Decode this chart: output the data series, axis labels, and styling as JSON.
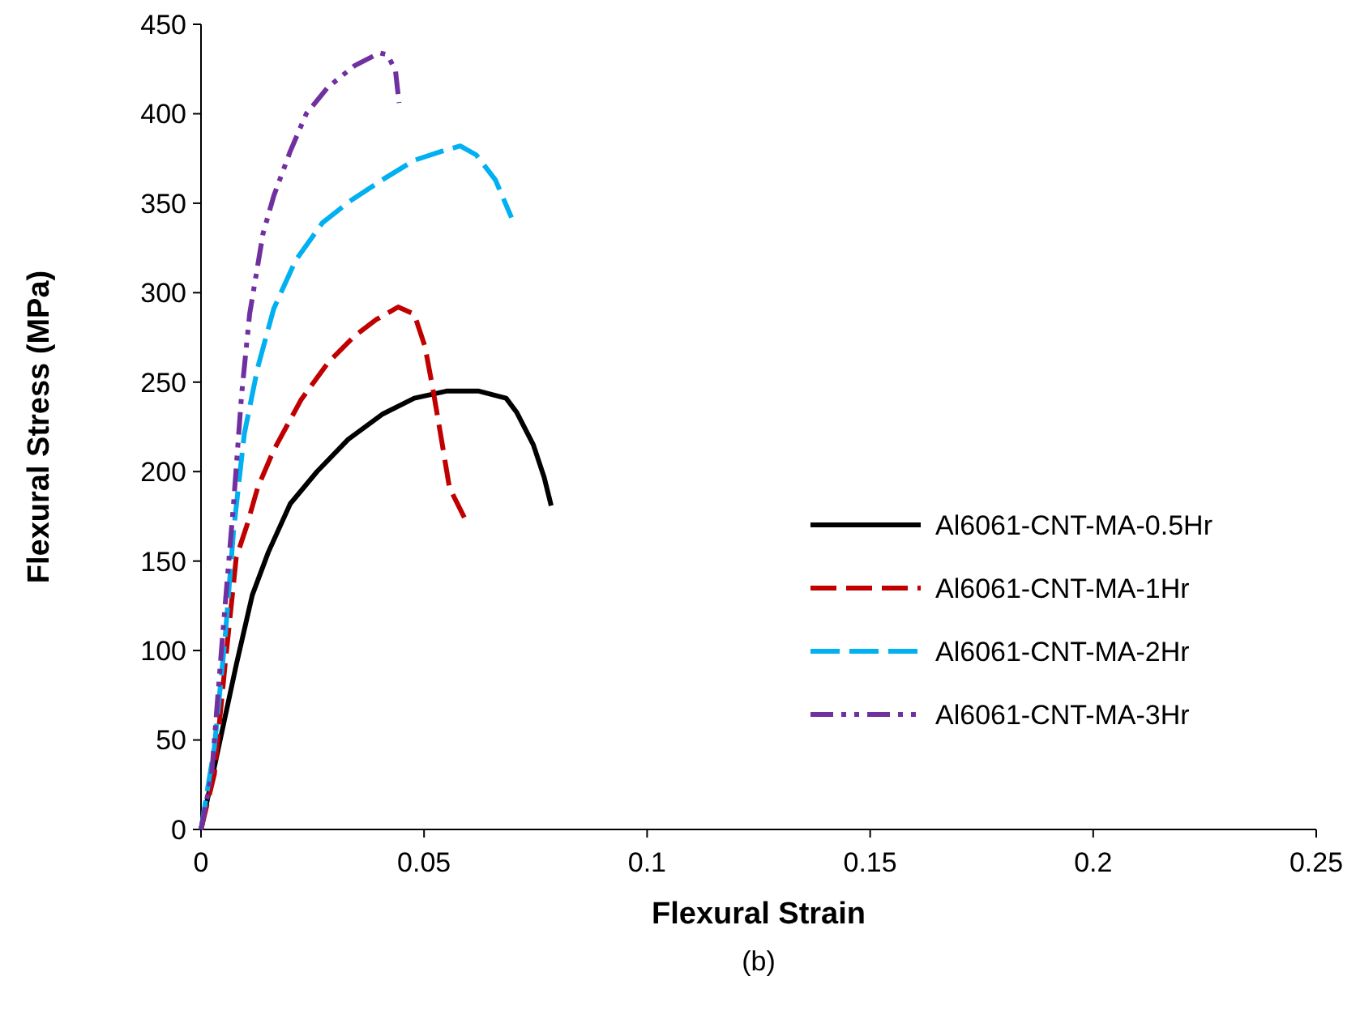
{
  "chart_data": {
    "type": "line",
    "xlabel": "Flexural Strain",
    "ylabel": "Flexural Stress (MPa)",
    "annotations": [
      "(b)"
    ],
    "xlim": [
      0,
      0.25
    ],
    "xticks": [
      0,
      0.05,
      0.1,
      0.15,
      0.2,
      0.25
    ],
    "ylim": [
      0,
      450
    ],
    "yticks": [
      0,
      50,
      100,
      150,
      200,
      250,
      300,
      350,
      400,
      450
    ],
    "grid": false,
    "legend": "right",
    "marker": "none",
    "series": [
      {
        "name": "Al6061-CNT-MA-0.5Hr",
        "color": "#000000",
        "line_style": "solid",
        "x": [
          0,
          0.0042,
          0.0079,
          0.0115,
          0.0151,
          0.02,
          0.026,
          0.033,
          0.0406,
          0.0478,
          0.055,
          0.0623,
          0.0684,
          0.0708,
          0.0745,
          0.0769,
          0.0785
        ],
        "values": [
          0,
          49,
          92,
          131,
          155,
          182,
          200,
          218,
          232,
          241,
          245,
          245,
          241,
          233,
          215,
          197,
          181
        ]
      },
      {
        "name": "Al6061-CNT-MA-1Hr",
        "color": "#c00000",
        "line_style": "dashed",
        "x": [
          0,
          0.003,
          0.0054,
          0.0079,
          0.0103,
          0.0127,
          0.0163,
          0.0224,
          0.0285,
          0.0345,
          0.0393,
          0.0442,
          0.0478,
          0.0502,
          0.052,
          0.0539,
          0.0557,
          0.0593
        ],
        "values": [
          0,
          31,
          92,
          152,
          170,
          191,
          212,
          240,
          261,
          276,
          285,
          292,
          288,
          270,
          246,
          218,
          191,
          173
        ]
      },
      {
        "name": "Al6061-CNT-MA-2Hr",
        "color": "#00b0f0",
        "line_style": "dashed",
        "x": [
          0,
          0.003,
          0.0054,
          0.0073,
          0.0097,
          0.0127,
          0.0163,
          0.0212,
          0.0272,
          0.0333,
          0.0406,
          0.0478,
          0.0539,
          0.0581,
          0.0617,
          0.066,
          0.0696
        ],
        "values": [
          0,
          46,
          107,
          167,
          221,
          258,
          291,
          318,
          339,
          351,
          363,
          374,
          379,
          382,
          377,
          363,
          342
        ]
      },
      {
        "name": "Al6061-CNT-MA-3Hr",
        "color": "#7030a0",
        "line_style": "dashed",
        "x": [
          0,
          0.0024,
          0.0048,
          0.0073,
          0.0091,
          0.0109,
          0.0139,
          0.0163,
          0.02,
          0.0236,
          0.0285,
          0.0345,
          0.04,
          0.0418,
          0.0436,
          0.0444
        ],
        "values": [
          0,
          31,
          107,
          182,
          243,
          288,
          333,
          354,
          379,
          400,
          415,
          427,
          434,
          433,
          424,
          406
        ]
      }
    ]
  }
}
